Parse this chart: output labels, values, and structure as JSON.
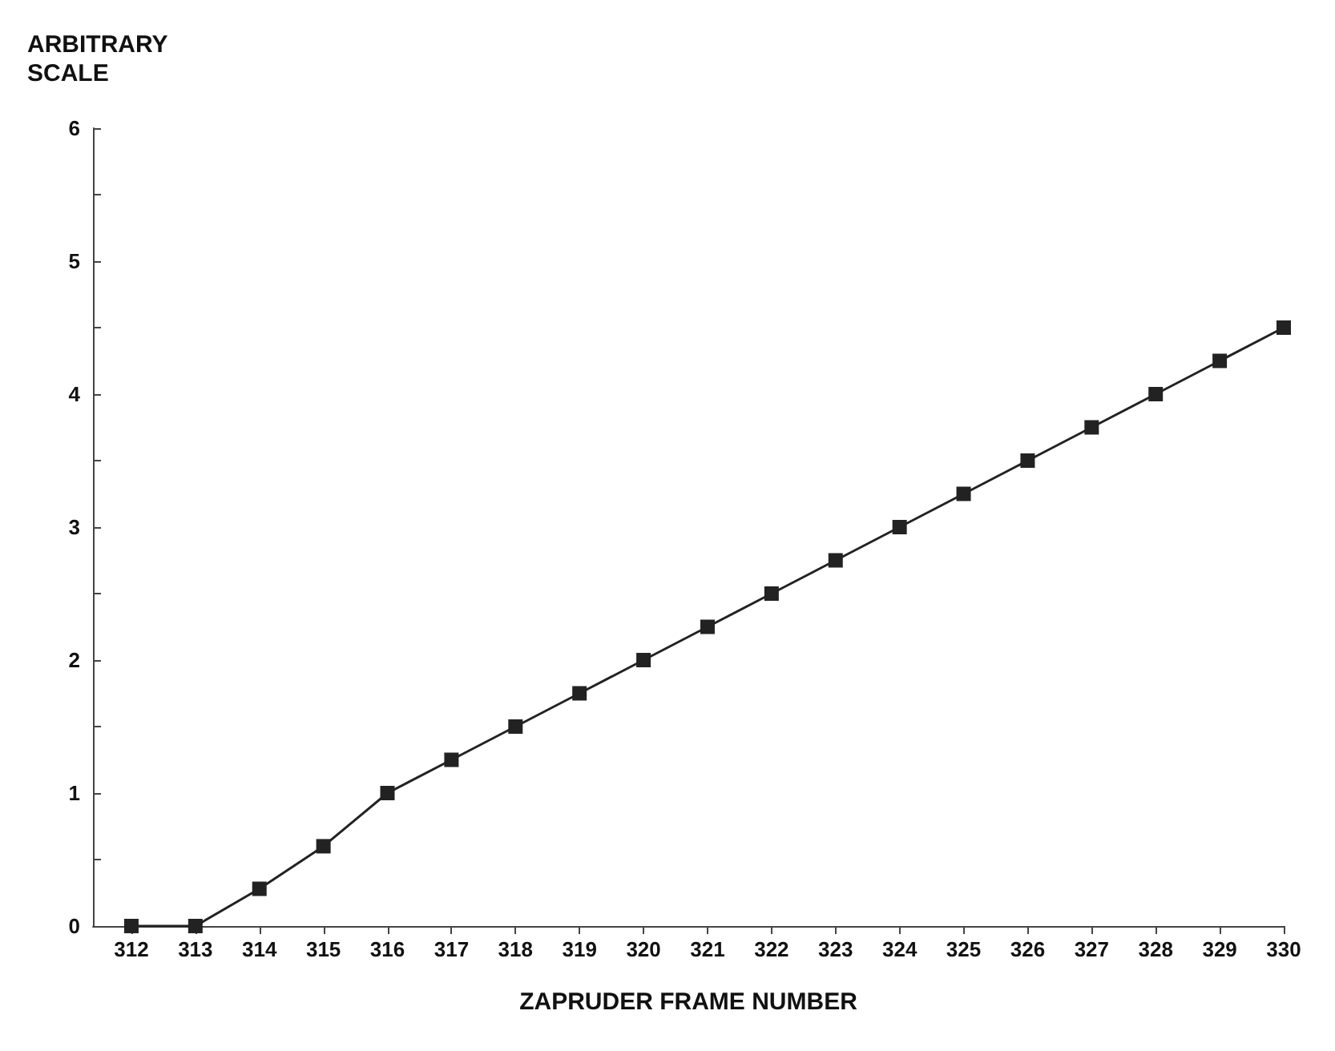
{
  "chart_data": {
    "type": "line",
    "xlabel": "ZAPRUDER FRAME NUMBER",
    "ylabel": "ARBITRARY\nSCALE",
    "x": [
      312,
      313,
      314,
      315,
      316,
      317,
      318,
      319,
      320,
      321,
      322,
      323,
      324,
      325,
      326,
      327,
      328,
      329,
      330
    ],
    "values": [
      0,
      0,
      0.28,
      0.6,
      1,
      1.25,
      1.5,
      1.75,
      2,
      2.25,
      2.5,
      2.75,
      3,
      3.25,
      3.5,
      3.75,
      4,
      4.25,
      4.5
    ],
    "color": "#222222",
    "marker": "square",
    "line_style": "solid",
    "grid": false,
    "xlim": [
      311.4,
      330
    ],
    "xticks": [
      312,
      313,
      314,
      315,
      316,
      317,
      318,
      319,
      320,
      321,
      322,
      323,
      324,
      325,
      326,
      327,
      328,
      329,
      330
    ],
    "ylim": [
      0,
      6
    ],
    "yticks": [
      0,
      {
        "value": 0.5,
        "label": null
      },
      1,
      {
        "value": 1.5,
        "label": null
      },
      2,
      {
        "value": 2.5,
        "label": null
      },
      3,
      {
        "value": 3.5,
        "label": null
      },
      4,
      {
        "value": 4.5,
        "label": null
      },
      5,
      {
        "value": 5.5,
        "label": null
      },
      6
    ]
  }
}
